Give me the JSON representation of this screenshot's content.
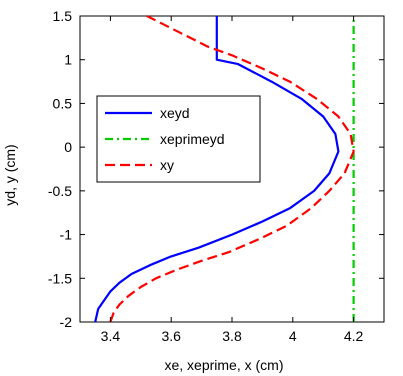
{
  "chart_data": {
    "type": "line",
    "title": "",
    "xlabel": "xe, xeprime, x (cm)",
    "ylabel": "yd, y (cm)",
    "xlim": [
      3.3,
      4.3
    ],
    "ylim": [
      -2,
      1.5
    ],
    "x_ticks": [
      3.4,
      3.6,
      3.8,
      4,
      4.2
    ],
    "y_ticks": [
      -2,
      -1.5,
      -1,
      -0.5,
      0,
      0.5,
      1,
      1.5
    ],
    "x_tick_labels": [
      "3.4",
      "3.6",
      "3.8",
      "4",
      "4.2"
    ],
    "y_tick_labels": [
      "-2",
      "-1.5",
      "-1",
      "-0.5",
      "0",
      "0.5",
      "1",
      "1.5"
    ],
    "grid": false,
    "legend_position": "center-left",
    "series": [
      {
        "name": "xeyd",
        "color": "#0000ff",
        "style": "solid",
        "x": [
          3.35,
          3.36,
          3.38,
          3.4,
          3.43,
          3.47,
          3.53,
          3.6,
          3.69,
          3.8,
          3.9,
          3.99,
          4.07,
          4.12,
          4.15,
          4.14,
          4.1,
          4.03,
          3.93,
          3.82,
          3.75,
          3.75
        ],
        "y": [
          -2,
          -1.85,
          -1.75,
          -1.65,
          -1.55,
          -1.45,
          -1.35,
          -1.25,
          -1.15,
          -1.0,
          -0.85,
          -0.7,
          -0.5,
          -0.3,
          -0.05,
          0.15,
          0.35,
          0.55,
          0.75,
          0.95,
          1.0,
          1.5
        ]
      },
      {
        "name": "xeprimeyd",
        "color": "#00cc00",
        "style": "dash-dot",
        "x": [
          4.2,
          4.2
        ],
        "y": [
          -2,
          1.5
        ]
      },
      {
        "name": "xy",
        "color": "#ff0000",
        "style": "dashed",
        "x": [
          3.4,
          3.41,
          3.43,
          3.46,
          3.5,
          3.55,
          3.62,
          3.7,
          3.79,
          3.89,
          3.98,
          4.06,
          4.12,
          4.17,
          4.2,
          4.19,
          4.15,
          4.08,
          3.99,
          3.9,
          3.8,
          3.72,
          3.52
        ],
        "y": [
          -2,
          -1.9,
          -1.8,
          -1.7,
          -1.6,
          -1.5,
          -1.4,
          -1.3,
          -1.2,
          -1.05,
          -0.9,
          -0.7,
          -0.5,
          -0.3,
          -0.05,
          0.15,
          0.35,
          0.55,
          0.75,
          0.9,
          1.05,
          1.15,
          1.5
        ]
      }
    ]
  }
}
